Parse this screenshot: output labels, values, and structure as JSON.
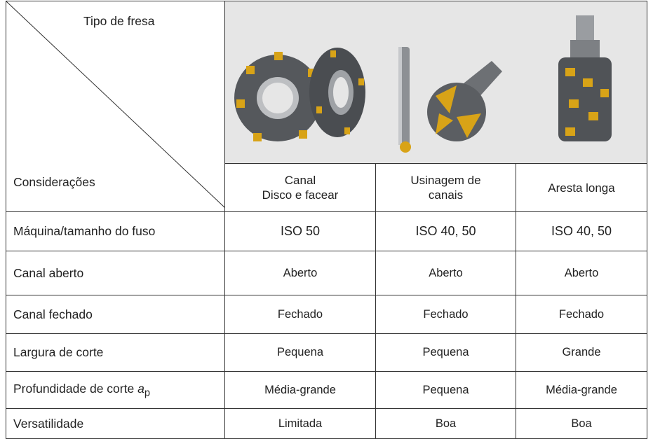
{
  "header": {
    "corner_top": "Tipo de fresa",
    "corner_bottom": "Considerações",
    "columns": [
      [
        "Canal",
        "Disco e facear"
      ],
      [
        "Usinagem de",
        "canais"
      ],
      [
        "Aresta longa"
      ]
    ]
  },
  "table": {
    "rows": [
      {
        "label": "Máquina/tamanho do fuso",
        "cells": [
          "ISO 50",
          "ISO 40, 50",
          "ISO 40, 50"
        ]
      },
      {
        "label": "Canal aberto",
        "cells": [
          "Aberto",
          "Aberto",
          "Aberto"
        ]
      },
      {
        "label": "Canal fechado",
        "cells": [
          "Fechado",
          "Fechado",
          "Fechado"
        ]
      },
      {
        "label": "Largura de corte",
        "cells": [
          "Pequena",
          "Pequena",
          "Grande"
        ]
      },
      {
        "label": "Profundidade de corte",
        "label_symbol": "a",
        "label_subscript": "p",
        "cells": [
          "Média-grande",
          "Pequena",
          "Média-grande"
        ]
      },
      {
        "label": "Versatilidade",
        "cells": [
          "Limitada",
          "Boa",
          "Boa"
        ]
      }
    ]
  }
}
